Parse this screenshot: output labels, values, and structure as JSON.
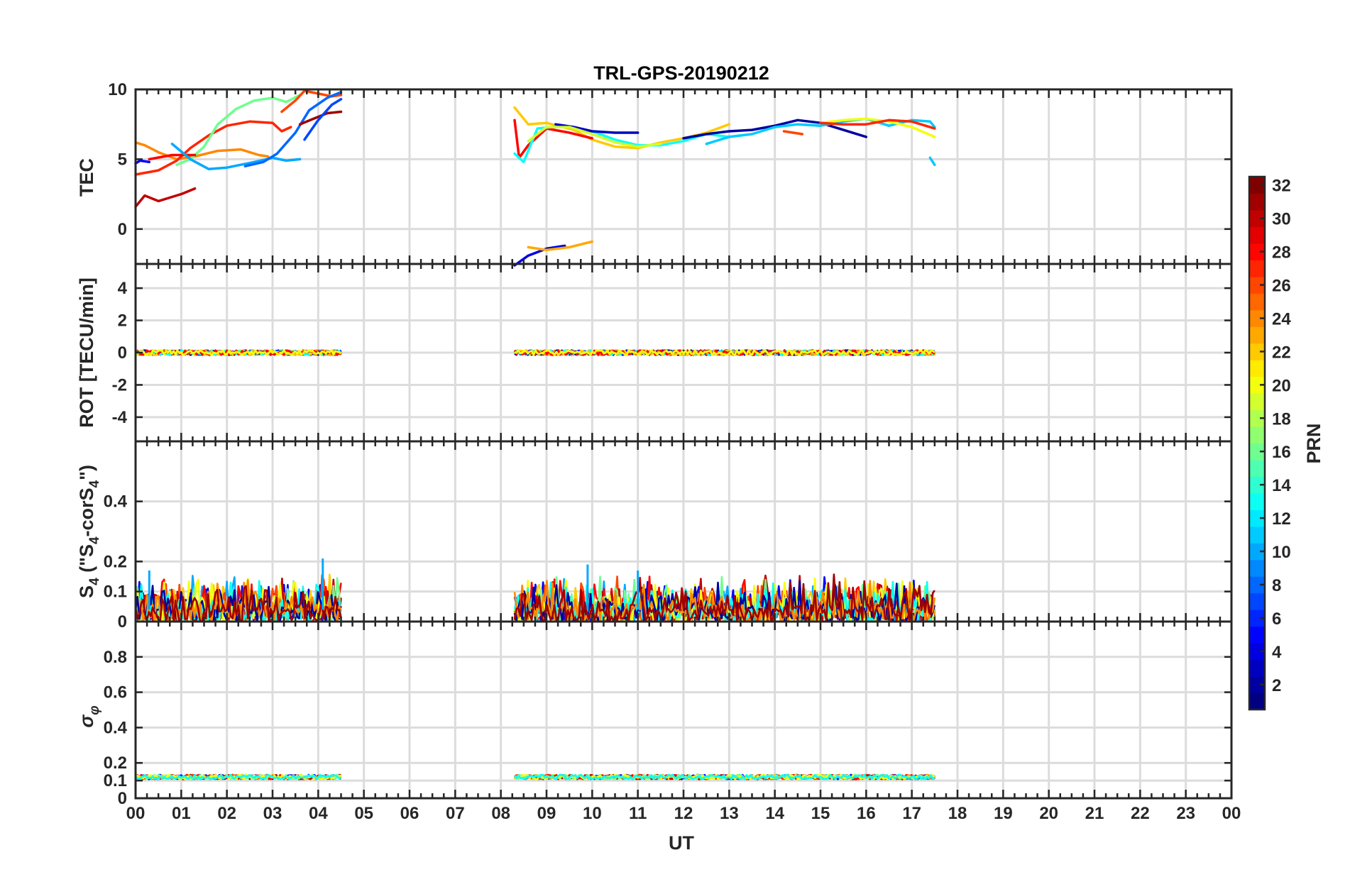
{
  "chart_data": {
    "type": "line",
    "title": "TRL-GPS-20190212",
    "xlabel": "UT",
    "x_tick_labels": [
      "00",
      "01",
      "02",
      "03",
      "04",
      "05",
      "06",
      "07",
      "08",
      "09",
      "10",
      "11",
      "12",
      "13",
      "14",
      "15",
      "16",
      "17",
      "18",
      "19",
      "20",
      "21",
      "22",
      "23",
      "00"
    ],
    "xlim": [
      0,
      24
    ],
    "panels": [
      {
        "id": "tec",
        "ylabel": "TEC",
        "ylim": [
          -2.5,
          10
        ],
        "yticks": [
          0,
          5,
          10
        ],
        "ytick_labels": [
          "0",
          "5",
          "10"
        ],
        "series": [
          {
            "name": "PRN 30",
            "prn": 30,
            "points": [
              [
                0.0,
                1.6
              ],
              [
                0.2,
                2.4
              ],
              [
                0.5,
                2.0
              ],
              [
                0.8,
                2.3
              ],
              [
                1.0,
                2.5
              ],
              [
                1.3,
                2.9
              ]
            ]
          },
          {
            "name": "PRN 5",
            "prn": 5,
            "points": [
              [
                0.0,
                4.7
              ],
              [
                0.1,
                4.9
              ],
              [
                0.3,
                4.8
              ]
            ]
          },
          {
            "name": "PRN 24",
            "prn": 24,
            "points": [
              [
                0.0,
                6.2
              ],
              [
                0.2,
                6.0
              ],
              [
                0.5,
                5.5
              ],
              [
                0.9,
                5.0
              ],
              [
                1.3,
                5.2
              ],
              [
                1.8,
                5.6
              ],
              [
                2.3,
                5.7
              ],
              [
                2.7,
                5.3
              ],
              [
                2.9,
                5.2
              ]
            ]
          },
          {
            "name": "PRN 27",
            "prn": 27,
            "points": [
              [
                0.0,
                3.9
              ],
              [
                0.5,
                4.2
              ],
              [
                0.9,
                4.9
              ],
              [
                1.2,
                5.8
              ],
              [
                1.6,
                6.7
              ],
              [
                2.0,
                7.4
              ],
              [
                2.5,
                7.7
              ],
              [
                3.0,
                7.6
              ],
              [
                3.2,
                7.0
              ],
              [
                3.4,
                7.3
              ]
            ]
          },
          {
            "name": "PRN 16",
            "prn": 16,
            "points": [
              [
                0.9,
                4.6
              ],
              [
                1.2,
                5.0
              ],
              [
                1.5,
                5.9
              ],
              [
                1.8,
                7.5
              ],
              [
                2.2,
                8.6
              ],
              [
                2.6,
                9.2
              ],
              [
                3.0,
                9.4
              ],
              [
                3.3,
                9.1
              ],
              [
                3.6,
                9.6
              ]
            ]
          },
          {
            "name": "PRN 28",
            "prn": 28,
            "points": [
              [
                0.3,
                5.0
              ],
              [
                0.8,
                5.3
              ],
              [
                1.3,
                5.3
              ]
            ]
          },
          {
            "name": "PRN 10",
            "prn": 10,
            "points": [
              [
                0.8,
                6.1
              ],
              [
                1.2,
                5.0
              ],
              [
                1.6,
                4.3
              ],
              [
                2.0,
                4.4
              ],
              [
                2.6,
                4.8
              ],
              [
                3.0,
                5.1
              ],
              [
                3.3,
                4.9
              ],
              [
                3.6,
                5.0
              ]
            ]
          },
          {
            "name": "PRN 26",
            "prn": 26,
            "points": [
              [
                3.2,
                8.4
              ],
              [
                3.5,
                9.2
              ],
              [
                3.7,
                9.9
              ],
              [
                4.0,
                9.7
              ],
              [
                4.3,
                9.5
              ],
              [
                4.5,
                9.6
              ]
            ]
          },
          {
            "name": "PRN 8",
            "prn": 8,
            "points": [
              [
                2.4,
                4.5
              ],
              [
                2.8,
                4.8
              ],
              [
                3.1,
                5.4
              ],
              [
                3.5,
                6.9
              ],
              [
                3.8,
                8.5
              ],
              [
                4.2,
                9.4
              ],
              [
                4.5,
                9.8
              ]
            ]
          },
          {
            "name": "PRN 31",
            "prn": 31,
            "points": [
              [
                3.6,
                7.5
              ],
              [
                3.9,
                7.9
              ],
              [
                4.2,
                8.3
              ],
              [
                4.5,
                8.4
              ]
            ]
          },
          {
            "name": "PRN 7",
            "prn": 7,
            "points": [
              [
                3.7,
                6.4
              ],
              [
                4.0,
                7.8
              ],
              [
                4.3,
                8.9
              ],
              [
                4.5,
                9.3
              ]
            ]
          },
          {
            "name": "PRN 22",
            "prn": 22,
            "points": [
              [
                8.3,
                8.7
              ],
              [
                8.6,
                7.5
              ],
              [
                9.0,
                7.6
              ],
              [
                9.6,
                7.1
              ],
              [
                10.0,
                6.4
              ],
              [
                10.5,
                5.9
              ],
              [
                11.0,
                5.8
              ],
              [
                11.5,
                6.2
              ],
              [
                12.0,
                6.5
              ],
              [
                12.5,
                6.9
              ],
              [
                13.0,
                7.5
              ]
            ]
          },
          {
            "name": "PRN 28 b",
            "prn": 28,
            "points": [
              [
                8.3,
                7.8
              ],
              [
                8.4,
                5.1
              ],
              [
                8.6,
                6.0
              ],
              [
                9.0,
                7.2
              ],
              [
                9.5,
                6.9
              ],
              [
                10.0,
                6.5
              ]
            ]
          },
          {
            "name": "PRN 13",
            "prn": 13,
            "points": [
              [
                8.3,
                5.4
              ],
              [
                8.5,
                4.8
              ],
              [
                8.8,
                7.2
              ],
              [
                9.4,
                7.4
              ],
              [
                10.0,
                7.0
              ],
              [
                10.5,
                6.4
              ],
              [
                11.0,
                6.0
              ],
              [
                11.5,
                6.0
              ],
              [
                12.0,
                6.3
              ],
              [
                12.5,
                6.8
              ],
              [
                13.0,
                6.6
              ]
            ]
          },
          {
            "name": "PRN 3",
            "prn": 3,
            "points": [
              [
                9.2,
                7.5
              ],
              [
                9.6,
                7.3
              ],
              [
                10.0,
                7.0
              ],
              [
                10.5,
                6.9
              ],
              [
                11.0,
                6.9
              ]
            ]
          },
          {
            "name": "PRN 19",
            "prn": 19,
            "points": [
              [
                8.6,
                6.3
              ],
              [
                9.0,
                7.3
              ],
              [
                9.5,
                7.3
              ],
              [
                10.0,
                6.8
              ],
              [
                10.5,
                6.2
              ],
              [
                11.0,
                5.9
              ],
              [
                11.5,
                6.1
              ]
            ]
          },
          {
            "name": "PRN 2",
            "prn": 2,
            "points": [
              [
                12.0,
                6.5
              ],
              [
                12.5,
                6.8
              ],
              [
                13.0,
                7.0
              ],
              [
                13.5,
                7.1
              ],
              [
                14.0,
                7.4
              ],
              [
                14.5,
                7.8
              ],
              [
                15.0,
                7.6
              ],
              [
                15.5,
                7.1
              ],
              [
                16.0,
                6.6
              ]
            ]
          },
          {
            "name": "PRN 11",
            "prn": 11,
            "points": [
              [
                12.5,
                6.1
              ],
              [
                13.0,
                6.6
              ],
              [
                13.5,
                6.8
              ],
              [
                14.0,
                7.3
              ],
              [
                14.5,
                7.5
              ],
              [
                15.0,
                7.4
              ],
              [
                15.5,
                7.7
              ],
              [
                16.0,
                7.9
              ],
              [
                16.5,
                7.4
              ],
              [
                17.0,
                7.8
              ],
              [
                17.4,
                7.7
              ],
              [
                17.5,
                7.3
              ]
            ]
          },
          {
            "name": "PRN 11 tail",
            "prn": 11,
            "points": [
              [
                17.4,
                5.1
              ],
              [
                17.5,
                4.6
              ]
            ]
          },
          {
            "name": "PRN 26 b",
            "prn": 26,
            "points": [
              [
                14.2,
                7.0
              ],
              [
                14.6,
                6.8
              ]
            ]
          },
          {
            "name": "PRN 20",
            "prn": 20,
            "points": [
              [
                15.0,
                7.6
              ],
              [
                15.5,
                7.8
              ],
              [
                16.0,
                7.9
              ],
              [
                16.5,
                7.7
              ],
              [
                17.0,
                7.3
              ],
              [
                17.5,
                6.6
              ]
            ]
          },
          {
            "name": "PRN 27 b",
            "prn": 27,
            "points": [
              [
                15.0,
                7.6
              ],
              [
                15.5,
                7.5
              ],
              [
                16.0,
                7.5
              ],
              [
                16.5,
                7.8
              ],
              [
                17.0,
                7.7
              ],
              [
                17.5,
                7.2
              ]
            ]
          },
          {
            "name": "PRN 4",
            "prn": 4,
            "points": [
              [
                8.3,
                -2.6
              ],
              [
                8.6,
                -1.9
              ],
              [
                9.0,
                -1.4
              ],
              [
                9.4,
                -1.2
              ]
            ]
          },
          {
            "name": "PRN 23",
            "prn": 23,
            "points": [
              [
                8.6,
                -1.3
              ],
              [
                9.0,
                -1.5
              ],
              [
                9.5,
                -1.3
              ],
              [
                10.0,
                -0.9
              ]
            ]
          }
        ]
      },
      {
        "id": "rot",
        "ylabel": "ROT [TECU/min]",
        "ylim": [
          -5.5,
          5.5
        ],
        "yticks": [
          -4,
          -2,
          0,
          2,
          4
        ],
        "ytick_labels": [
          "-4",
          "-2",
          "0",
          "2",
          "4"
        ],
        "baseline": 0,
        "noise_amplitude": 0.3,
        "segments": [
          [
            0.0,
            4.5
          ],
          [
            8.3,
            17.5
          ]
        ],
        "prns": [
          30,
          26,
          10,
          16,
          5,
          24,
          2,
          13,
          22,
          28,
          20
        ]
      },
      {
        "id": "s4",
        "ylabel": "S4 (\"S4-corS4\")",
        "ylim": [
          0,
          0.6
        ],
        "yticks": [
          0,
          0.1,
          0.2,
          0.4
        ],
        "ytick_labels": [
          "0",
          "0.1",
          "0.2",
          "0.4"
        ],
        "baseline": 0.04,
        "noise_amplitude": 0.12,
        "segments": [
          [
            0.0,
            4.5
          ],
          [
            8.3,
            17.5
          ]
        ],
        "peaks": [
          [
            4.1,
            0.21
          ],
          [
            9.9,
            0.19
          ],
          [
            0.3,
            0.17
          ],
          [
            11.0,
            0.17
          ]
        ],
        "prns": [
          5,
          10,
          22,
          26,
          28,
          30,
          16,
          20,
          13,
          2,
          24,
          31
        ]
      },
      {
        "id": "sigma",
        "ylabel": "σφ",
        "ylim": [
          0,
          1
        ],
        "yticks": [
          0,
          0.1,
          0.2,
          0.4,
          0.6,
          0.8
        ],
        "ytick_labels": [
          "0",
          "0.1",
          "0.2",
          "0.4",
          "0.6",
          "0.8"
        ],
        "baseline": 0.12,
        "noise_amplitude": 0.025,
        "segments": [
          [
            0.0,
            4.5
          ],
          [
            8.3,
            17.5
          ]
        ],
        "prns": [
          10,
          5,
          22,
          26,
          28,
          30,
          16,
          20,
          13
        ]
      }
    ],
    "colorbar": {
      "label": "PRN",
      "colormap": "jet",
      "range": [
        1,
        32
      ],
      "ticks": [
        2,
        4,
        6,
        8,
        10,
        12,
        14,
        16,
        18,
        20,
        22,
        24,
        26,
        28,
        30,
        32
      ],
      "tick_labels": [
        "2",
        "4",
        "6",
        "8",
        "10",
        "12",
        "14",
        "16",
        "18",
        "20",
        "22",
        "24",
        "26",
        "28",
        "30",
        "32"
      ]
    }
  }
}
